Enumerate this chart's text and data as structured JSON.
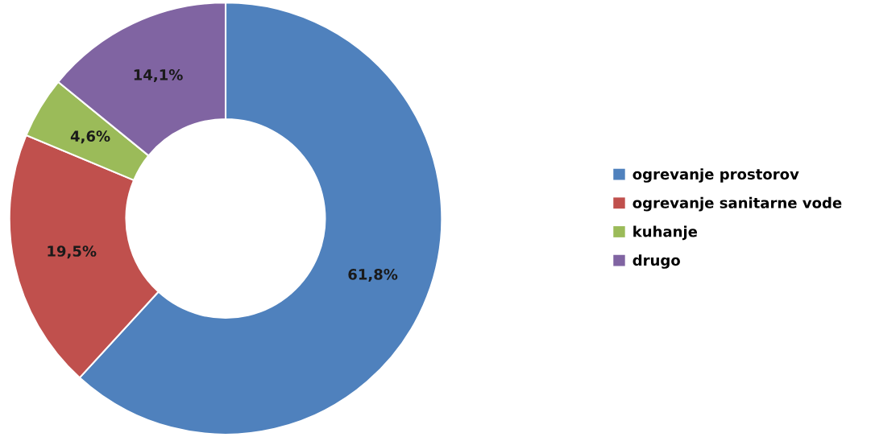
{
  "chart_data": {
    "type": "donut",
    "categories": [
      "ogrevanje prostorov",
      "ogrevanje sanitarne vode",
      "kuhanje",
      "drugo"
    ],
    "values": [
      61.8,
      19.5,
      4.6,
      14.1
    ],
    "colors": [
      "#4f81bd",
      "#c0504d",
      "#9bbb59",
      "#8064a2"
    ],
    "value_labels": [
      "61,8%",
      "19,5%",
      "4,6%",
      "14,1%"
    ],
    "legend": "right"
  }
}
